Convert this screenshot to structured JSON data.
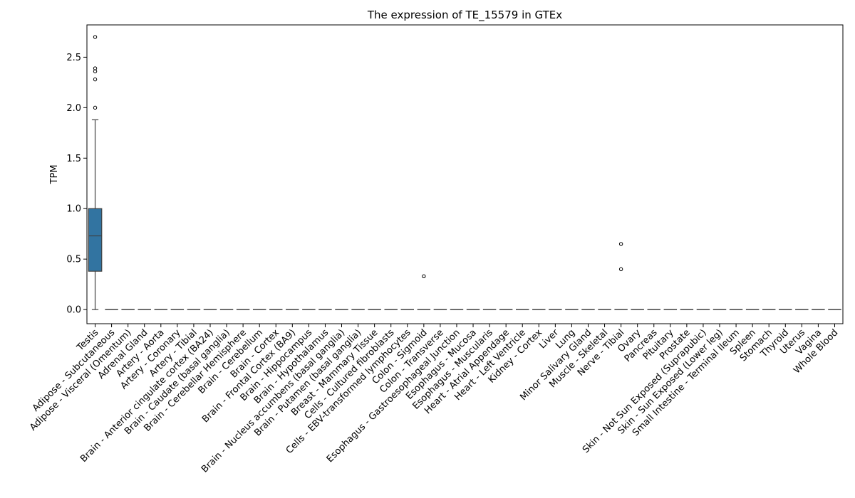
{
  "chart_data": {
    "type": "box",
    "title": "The expression of TE_15579 in GTEx",
    "xlabel": "",
    "ylabel": "TPM",
    "ylim": [
      -0.14,
      2.82
    ],
    "yticks": [
      0.0,
      0.5,
      1.0,
      1.5,
      2.0,
      2.5
    ],
    "ytick_labels": [
      "0.0",
      "0.5",
      "1.0",
      "1.5",
      "2.0",
      "2.5"
    ],
    "box_color": "#3274a1",
    "categories": [
      "Testis",
      "Adipose - Subcutaneous",
      "Adipose - Visceral (Omentum)",
      "Adrenal Gland",
      "Artery - Aorta",
      "Artery - Coronary",
      "Artery - Tibial",
      "Brain - Anterior cingulate cortex (BA24)",
      "Brain - Caudate (basal ganglia)",
      "Brain - Cerebellar Hemisphere",
      "Brain - Cerebellum",
      "Brain - Cortex",
      "Brain - Frontal Cortex (BA9)",
      "Brain - Hippocampus",
      "Brain - Hypothalamus",
      "Brain - Nucleus accumbens (basal ganglia)",
      "Brain - Putamen (basal ganglia)",
      "Breast - Mammary Tissue",
      "Cells - Cultured fibroblasts",
      "Cells - EBV-transformed lymphocytes",
      "Colon - Sigmoid",
      "Colon - Transverse",
      "Esophagus - Gastroesophageal Junction",
      "Esophagus - Mucosa",
      "Esophagus - Muscularis",
      "Heart - Atrial Appendage",
      "Heart - Left Ventricle",
      "Kidney - Cortex",
      "Liver",
      "Lung",
      "Minor Salivary Gland",
      "Muscle - Skeletal",
      "Nerve - Tibial",
      "Ovary",
      "Pancreas",
      "Pituitary",
      "Prostate",
      "Skin - Not Sun Exposed (Suprapubic)",
      "Skin - Sun Exposed (Lower leg)",
      "Small Intestine - Terminal Ileum",
      "Spleen",
      "Stomach",
      "Thyroid",
      "Uterus",
      "Vagina",
      "Whole Blood"
    ],
    "boxes": [
      {
        "whislo": 0.0,
        "q1": 0.38,
        "med": 0.73,
        "q3": 1.0,
        "whishi": 1.88,
        "fliers": [
          2.0,
          2.28,
          2.36,
          2.39,
          2.7
        ]
      }
    ],
    "default_box": {
      "whislo": 0.0,
      "q1": 0.0,
      "med": 0.0,
      "q3": 0.0,
      "whishi": 0.0,
      "fliers": []
    },
    "extra_fliers": [
      {
        "category_index": 20,
        "values": [
          0.33
        ]
      },
      {
        "category_index": 32,
        "values": [
          0.4,
          0.65
        ]
      }
    ]
  }
}
